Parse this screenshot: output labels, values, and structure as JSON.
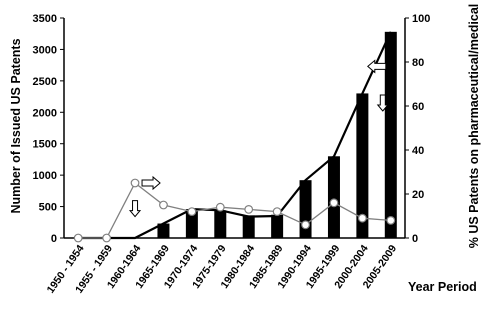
{
  "chart_data": {
    "type": "bar",
    "categories": [
      "1950 - 1954",
      "1955 - 1959",
      "1960-1964",
      "1965-1969",
      "1970-1974",
      "1975-1979",
      "1980-1984",
      "1985-1989",
      "1990-1994",
      "1995-1999",
      "2000-2004",
      "2005-2009"
    ],
    "xlabel": "Year Period",
    "ylabel": "Number of Issued US Patents",
    "y2label": "% US Patents on pharmaceutical/medical",
    "ylim": [
      0,
      3500
    ],
    "y2lim": [
      0,
      100
    ],
    "yticks": [
      0,
      500,
      1000,
      1500,
      2000,
      2500,
      3000,
      3500
    ],
    "y2ticks": [
      0,
      20,
      40,
      60,
      80,
      100
    ],
    "grid": false,
    "series": [
      {
        "kind": "bar",
        "axis": "left",
        "color": "#000000",
        "values": [
          0,
          0,
          0,
          230,
          460,
          440,
          360,
          370,
          920,
          1300,
          2300,
          3280
        ]
      },
      {
        "kind": "line",
        "axis": "left",
        "color": "#000000",
        "values": [
          0,
          0,
          0,
          230,
          460,
          440,
          340,
          350,
          920,
          1300,
          2300,
          3280
        ]
      },
      {
        "kind": "line-markers",
        "axis": "right",
        "color": "#808080",
        "values": [
          0,
          0,
          25,
          15,
          12,
          14,
          13,
          12,
          6,
          16,
          9,
          8
        ]
      }
    ],
    "annotations": [
      {
        "type": "arrow-right",
        "category": 2,
        "value_right": 25,
        "points_to": "right-axis"
      },
      {
        "type": "arrow-down",
        "category": 2,
        "value_right": 17
      },
      {
        "type": "arrow-left",
        "category": 11,
        "value_right": 78,
        "points_to": "left-axis"
      },
      {
        "type": "arrow-down",
        "category": 11,
        "value_right": 65
      }
    ]
  }
}
